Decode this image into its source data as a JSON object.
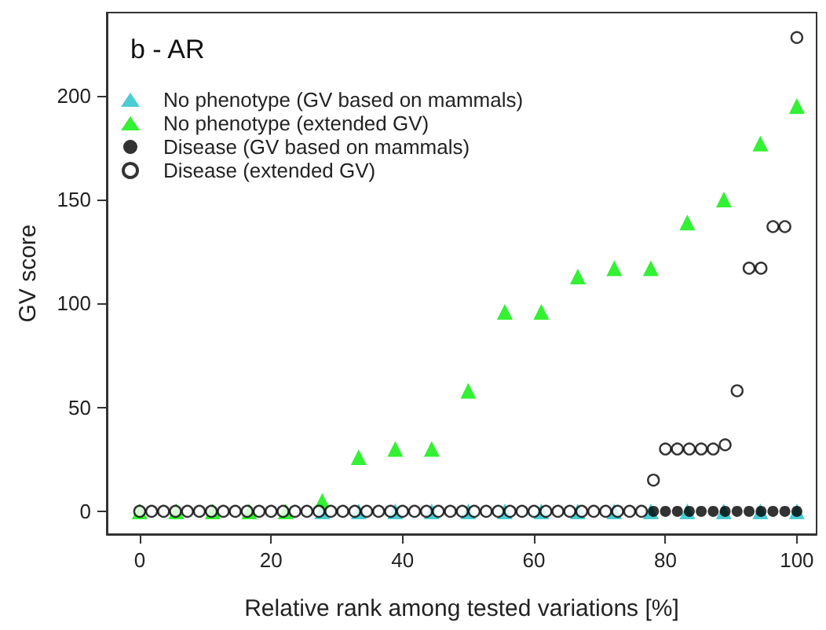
{
  "chart_data": {
    "type": "scatter",
    "title": "b - AR",
    "xlabel": "Relative rank among tested variations [%]",
    "ylabel": "GV score",
    "xlim": [
      -5,
      103
    ],
    "xticks": [
      0,
      20,
      40,
      60,
      80,
      100
    ],
    "ylim": [
      -11,
      240
    ],
    "yticks": [
      0,
      50,
      100,
      150,
      200
    ],
    "grid": false,
    "legend": "top left",
    "series": [
      {
        "name": "No phenotype (GV based on mammals)",
        "color": "#1fbfc8",
        "marker": "triangle",
        "x": [
          27.78,
          33.33,
          38.89,
          44.44,
          50,
          55.56,
          61.11,
          66.67,
          72.22,
          77.78,
          83.33,
          88.89,
          94.44,
          100
        ],
        "values": [
          0,
          0,
          0,
          0,
          0,
          0,
          0,
          0,
          0,
          0,
          0,
          0,
          0,
          0
        ]
      },
      {
        "name": "No phenotype (extended GV)",
        "color": "#00ee00",
        "marker": "triangle",
        "x": [
          0,
          5.56,
          11.11,
          16.67,
          22.22,
          27.78,
          33.33,
          38.89,
          44.44,
          50,
          55.56,
          61.11,
          66.67,
          72.22,
          77.78,
          83.33,
          88.89,
          94.44,
          100
        ],
        "values": [
          0,
          0,
          0,
          0,
          0,
          5,
          26,
          30,
          30,
          58,
          96,
          96,
          113,
          117,
          117,
          139,
          150,
          177,
          195
        ]
      },
      {
        "name": "Disease (GV based on mammals)",
        "color": "#000000",
        "marker": "circle",
        "x": [
          78.18,
          80,
          81.82,
          83.64,
          85.45,
          87.27,
          89.09,
          90.91,
          92.73,
          94.55,
          96.36,
          98.18,
          100
        ],
        "values": [
          0,
          0,
          0,
          0,
          0,
          0,
          0,
          0,
          0,
          0,
          0,
          0,
          0
        ]
      },
      {
        "name": "Disease (extended GV)",
        "color": "#000000",
        "marker": "circle",
        "x": [
          0,
          1.82,
          3.64,
          5.45,
          7.27,
          9.09,
          10.91,
          12.73,
          14.55,
          16.36,
          18.18,
          20,
          21.82,
          23.64,
          25.45,
          27.27,
          29.09,
          30.91,
          32.73,
          34.55,
          36.36,
          38.18,
          40,
          41.82,
          43.64,
          45.45,
          47.27,
          49.09,
          50.91,
          52.73,
          54.55,
          56.36,
          58.18,
          60,
          61.82,
          63.64,
          65.45,
          67.27,
          69.09,
          70.91,
          72.73,
          74.55,
          76.36,
          78.18,
          80,
          81.82,
          83.64,
          85.45,
          87.27,
          89.09,
          90.91,
          92.73,
          94.55,
          96.36,
          98.18,
          100
        ],
        "values": [
          0,
          0,
          0,
          0,
          0,
          0,
          0,
          0,
          0,
          0,
          0,
          0,
          0,
          0,
          0,
          0,
          0,
          0,
          0,
          0,
          0,
          0,
          0,
          0,
          0,
          0,
          0,
          0,
          0,
          0,
          0,
          0,
          0,
          0,
          0,
          0,
          0,
          0,
          0,
          0,
          0,
          0,
          0,
          15,
          30,
          30,
          30,
          30,
          30,
          32,
          58,
          117,
          117,
          137,
          137,
          228
        ]
      }
    ]
  }
}
